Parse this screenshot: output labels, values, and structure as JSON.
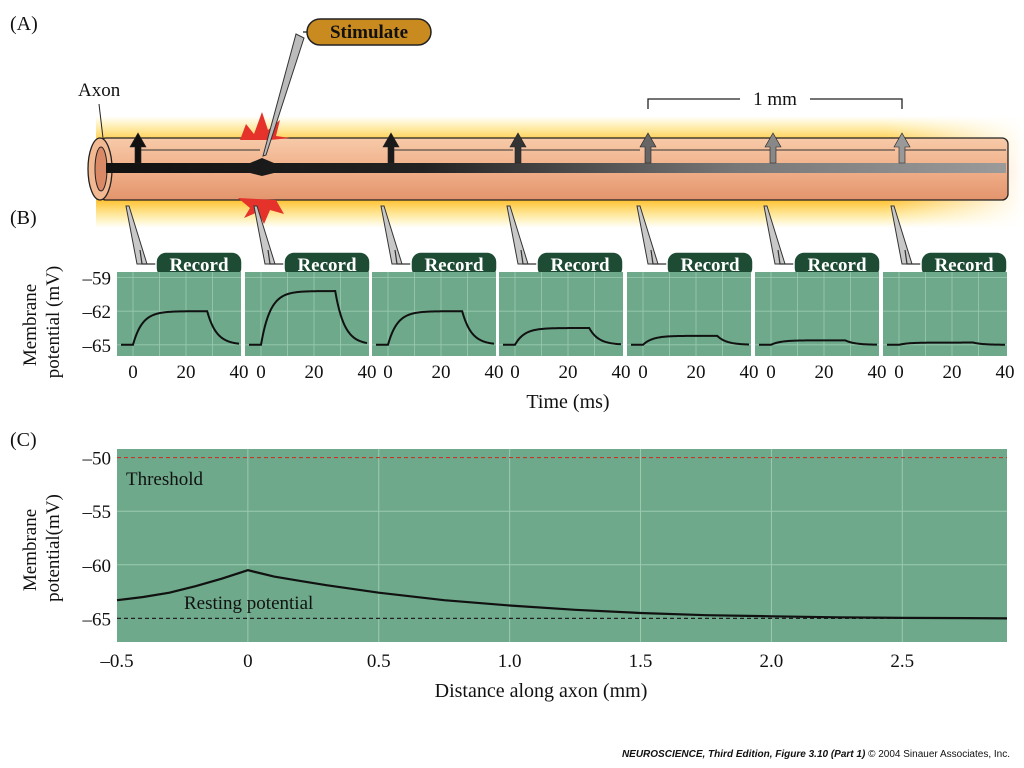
{
  "panel_a": {
    "label": "(A)",
    "axon_label": "Axon",
    "stimulate_label": "Stimulate",
    "scale_label": "1 mm"
  },
  "panel_b": {
    "label": "(B)",
    "record_label": "Record",
    "ylabel_line1": "Membrane",
    "ylabel_line2": "potential (mV)",
    "xlabel": "Time (ms)",
    "yticks": [
      "–59",
      "–62",
      "–65"
    ],
    "xticks": [
      "0",
      "20",
      "40"
    ]
  },
  "panel_c": {
    "label": "(C)",
    "ylabel_line1": "Membrane",
    "ylabel_line2": "potential(mV)",
    "xlabel": "Distance along axon (mm)",
    "threshold_label": "Threshold",
    "resting_label": "Resting potential",
    "yticks": [
      "–50",
      "–55",
      "–60",
      "–65"
    ],
    "xticks": [
      "–0.5",
      "0",
      "0.5",
      "1.0",
      "1.5",
      "2.0",
      "2.5"
    ]
  },
  "caption": {
    "title": "NEUROSCIENCE, Third Edition, Figure 3.10 (Part 1)",
    "credit": "© 2004 Sinauer Associates, Inc."
  },
  "colors": {
    "plot_bg": "#6da98a",
    "record_badge": "#1d4b34",
    "stimulate_badge": "#c98a1f",
    "axon_fill": "#f0b593",
    "glow": "#ffb400",
    "burst": "#e5322b"
  },
  "chart_data": [
    {
      "type": "line",
      "panel": "B",
      "x_unit": "ms",
      "y_unit": "mV",
      "xlim": [
        -5,
        40
      ],
      "ylim": [
        -66,
        -58.5
      ],
      "pulse_on_ms": 0,
      "pulse_off_ms": 28,
      "series": [
        {
          "peak": -62
        },
        {
          "peak": -60.2
        },
        {
          "peak": -62
        },
        {
          "peak": -63.5
        },
        {
          "peak": -64.2
        },
        {
          "peak": -64.6
        },
        {
          "peak": -64.8
        }
      ]
    },
    {
      "type": "line",
      "panel": "C",
      "x_unit": "mm",
      "y_unit": "mV",
      "xlim": [
        -0.5,
        2.9
      ],
      "ylim": [
        -67.2,
        -49.2
      ],
      "threshold": -50,
      "resting": -65,
      "x": [
        -0.5,
        -0.4,
        -0.3,
        -0.2,
        -0.1,
        0,
        0.1,
        0.2,
        0.3,
        0.5,
        0.75,
        1.0,
        1.25,
        1.5,
        1.75,
        2.0,
        2.25,
        2.5,
        2.75,
        2.9
      ],
      "y": [
        -63.3,
        -63.0,
        -62.6,
        -62.0,
        -61.3,
        -60.5,
        -61.1,
        -61.5,
        -61.9,
        -62.6,
        -63.3,
        -63.8,
        -64.2,
        -64.5,
        -64.7,
        -64.8,
        -64.9,
        -64.95,
        -64.97,
        -65.0
      ]
    }
  ]
}
